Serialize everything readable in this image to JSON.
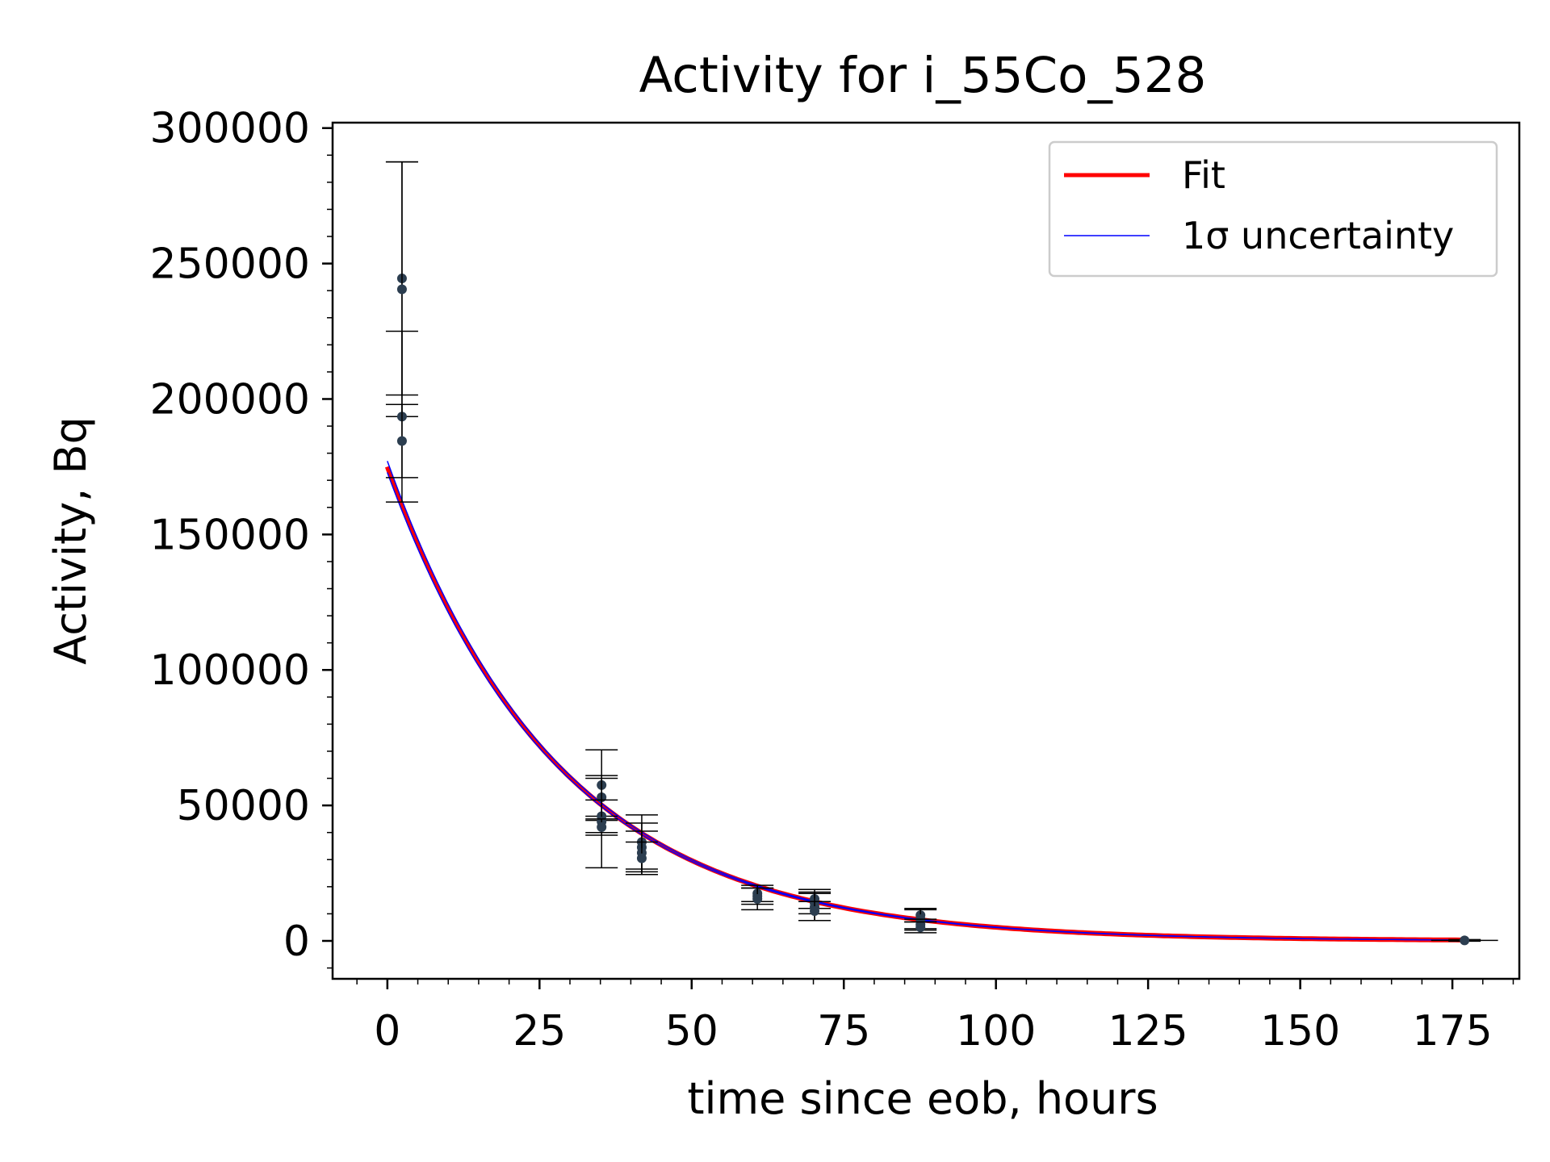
{
  "chart_data": {
    "type": "scatter",
    "title": "Activity for i_55Co_528",
    "xlabel": "time since eob, hours",
    "ylabel": "Activity, Bq",
    "xlim": [
      -9,
      186
    ],
    "ylim": [
      -14000,
      302000
    ],
    "xticks": [
      0,
      25,
      50,
      75,
      100,
      125,
      150,
      175
    ],
    "yticks": [
      0,
      50000,
      100000,
      150000,
      200000,
      250000,
      300000
    ],
    "grid": false,
    "legend": {
      "position": "top-right",
      "entries": [
        {
          "label": "Fit",
          "color": "#ff0000"
        },
        {
          "label": "1σ uncertainty",
          "color": "#0000ff"
        }
      ]
    },
    "fit": {
      "model": "exponential decay",
      "A0": 175000,
      "lambda": 0.0355,
      "x_start": 0,
      "x_end": 177
    },
    "points": [
      {
        "x": 2.4,
        "y": 244500,
        "err": 43000
      },
      {
        "x": 2.4,
        "y": 240500,
        "err": 47000
      },
      {
        "x": 2.4,
        "y": 193500,
        "err": 31500
      },
      {
        "x": 2.4,
        "y": 184500,
        "err": 13500
      },
      {
        "x": 35.2,
        "y": 57500,
        "err": 13000
      },
      {
        "x": 35.2,
        "y": 53000,
        "err": 7000
      },
      {
        "x": 35.2,
        "y": 46000,
        "err": 6000
      },
      {
        "x": 35.2,
        "y": 44000,
        "err": 17000
      },
      {
        "x": 35.2,
        "y": 42000,
        "err": 3000
      },
      {
        "x": 41.8,
        "y": 36500,
        "err": 10000
      },
      {
        "x": 41.8,
        "y": 34500,
        "err": 9000
      },
      {
        "x": 41.8,
        "y": 32500,
        "err": 8000
      },
      {
        "x": 41.8,
        "y": 30500,
        "err": 6000
      },
      {
        "x": 60.8,
        "y": 17500,
        "err": 3000
      },
      {
        "x": 60.8,
        "y": 16500,
        "err": 3000
      },
      {
        "x": 60.8,
        "y": 15500,
        "err": 4000
      },
      {
        "x": 70.2,
        "y": 15500,
        "err": 3500
      },
      {
        "x": 70.2,
        "y": 14000,
        "err": 4000
      },
      {
        "x": 70.2,
        "y": 12500,
        "err": 5000
      },
      {
        "x": 70.2,
        "y": 11000,
        "err": 3500
      },
      {
        "x": 87.6,
        "y": 9500,
        "err": 2500
      },
      {
        "x": 87.6,
        "y": 8000,
        "err": 3500
      },
      {
        "x": 87.6,
        "y": 6000,
        "err": 2000
      },
      {
        "x": 87.6,
        "y": 5000,
        "err": 2000
      },
      {
        "x": 177,
        "y": 200,
        "err": 300,
        "xerr": 5.5
      }
    ],
    "colors": {
      "points": "#2c3e50",
      "errorbars": "#000000",
      "fit": "#ff0000",
      "uncertainty": "#0000ff"
    }
  }
}
